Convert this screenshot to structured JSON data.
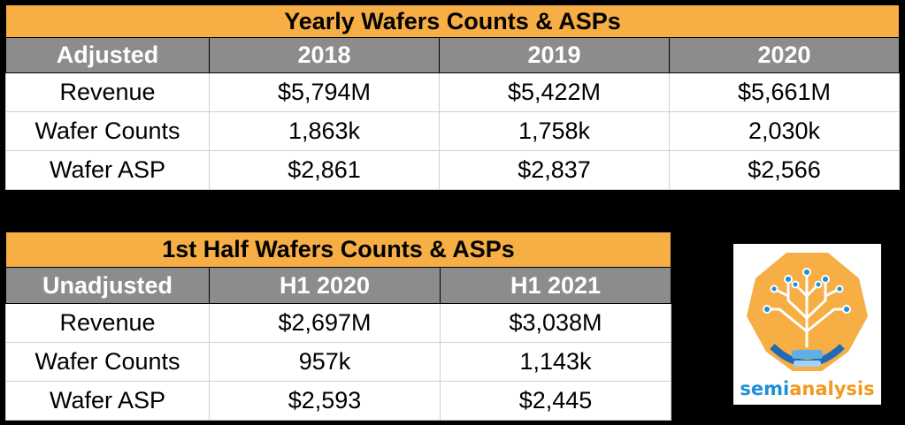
{
  "yearly": {
    "title": "Yearly Wafers Counts & ASPs",
    "headers": [
      "Adjusted",
      "2018",
      "2019",
      "2020"
    ],
    "rows": [
      [
        "Revenue",
        "$5,794M",
        "$5,422M",
        "$5,661M"
      ],
      [
        "Wafer Counts",
        "1,863k",
        "1,758k",
        "2,030k"
      ],
      [
        "Wafer ASP",
        "$2,861",
        "$2,837",
        "$2,566"
      ]
    ]
  },
  "half": {
    "title": "1st Half Wafers Counts & ASPs",
    "headers": [
      "Unadjusted",
      "H1 2020",
      "H1 2021"
    ],
    "rows": [
      [
        "Revenue",
        "$2,697M",
        "$3,038M"
      ],
      [
        "Wafer Counts",
        "957k",
        "1,143k"
      ],
      [
        "Wafer ASP",
        "$2,593",
        "$2,445"
      ]
    ]
  },
  "logo": {
    "word_part1": "semi",
    "word_part2": "analysis",
    "colors": {
      "orange": "#f6ae45",
      "blue": "#1e90d6"
    }
  },
  "colors": {
    "title_bg": "#f6ae45",
    "header_bg": "#8c8c8c",
    "background": "#000000"
  }
}
